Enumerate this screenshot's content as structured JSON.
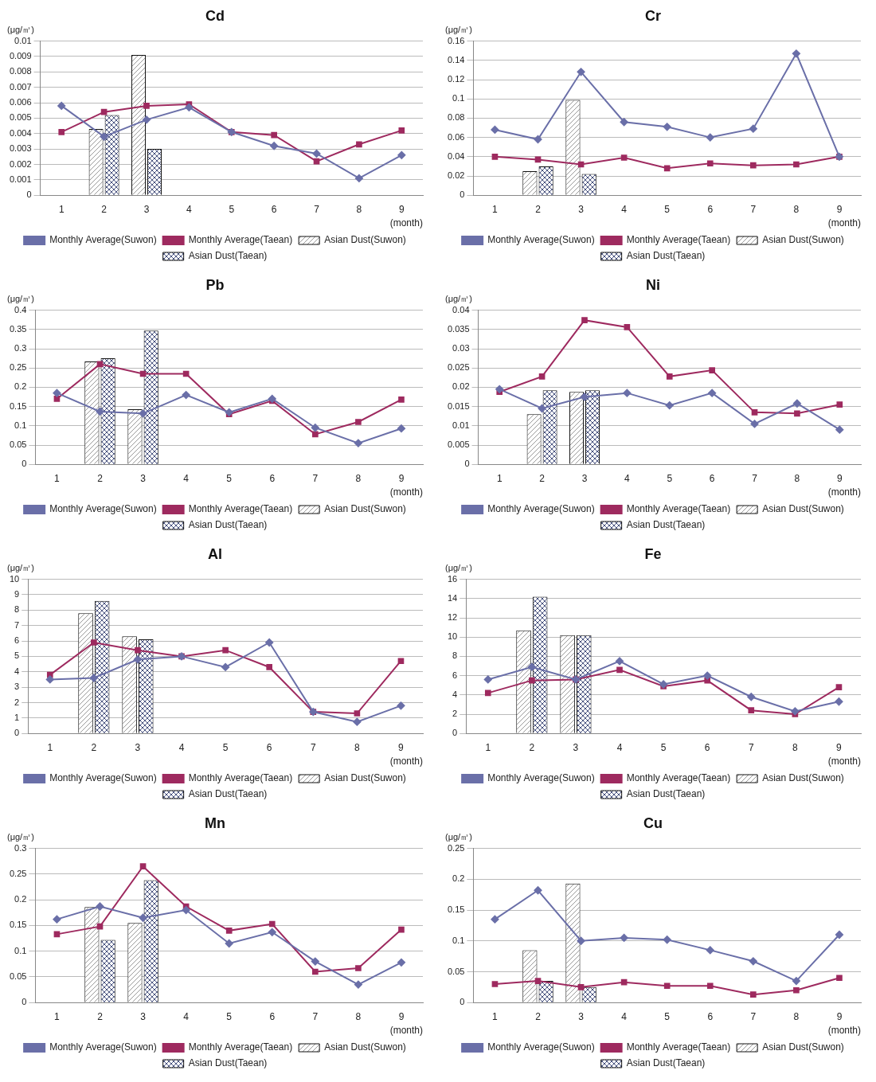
{
  "chart_data": [
    {
      "type": "bar",
      "title": "Cd",
      "y_label": "(μg/㎥)",
      "x_label": "(month)",
      "categories": [
        "1",
        "2",
        "3",
        "4",
        "5",
        "6",
        "7",
        "8",
        "9"
      ],
      "ylim": [
        0,
        0.01
      ],
      "yticks": [
        0,
        0.001,
        0.002,
        0.003,
        0.004,
        0.005,
        0.006,
        0.007,
        0.008,
        0.009,
        0.01
      ],
      "grid": true,
      "legend": "bottom",
      "series": [
        {
          "name": "Asian Dust(Suwon)",
          "type": "bar",
          "color": "#9a9a9a",
          "values": [
            null,
            0.0043,
            0.0091,
            null,
            null,
            null,
            null,
            null,
            null
          ]
        },
        {
          "name": "Asian Dust(Taean)",
          "type": "bar",
          "color": "#4a5480",
          "values": [
            null,
            0.0052,
            0.003,
            null,
            null,
            null,
            null,
            null,
            null
          ]
        },
        {
          "name": "Monthly Average(Suwon)",
          "type": "line",
          "color": "#6a6fa8",
          "marker": "diamond",
          "values": [
            0.0058,
            0.0038,
            0.0049,
            0.0057,
            0.0041,
            0.0032,
            0.0027,
            0.0011,
            0.0026
          ]
        },
        {
          "name": "Monthly Average(Taean)",
          "type": "line",
          "color": "#9e2a5f",
          "marker": "square",
          "values": [
            0.0041,
            0.0054,
            0.0058,
            0.0059,
            0.0041,
            0.0039,
            0.0022,
            0.0033,
            0.0042
          ]
        }
      ]
    },
    {
      "type": "bar",
      "title": "Cr",
      "y_label": "(μg/㎥)",
      "x_label": "(month)",
      "categories": [
        "1",
        "2",
        "3",
        "4",
        "5",
        "6",
        "7",
        "8",
        "9"
      ],
      "ylim": [
        0,
        0.16
      ],
      "yticks": [
        0,
        0.02,
        0.04,
        0.06,
        0.08,
        0.1,
        0.12,
        0.14,
        0.16
      ],
      "grid": true,
      "legend": "bottom",
      "series": [
        {
          "name": "Asian Dust(Suwon)",
          "type": "bar",
          "color": "#9a9a9a",
          "values": [
            null,
            0.025,
            0.099,
            null,
            null,
            null,
            null,
            null,
            null
          ]
        },
        {
          "name": "Asian Dust(Taean)",
          "type": "bar",
          "color": "#4a5480",
          "values": [
            null,
            0.03,
            0.022,
            null,
            null,
            null,
            null,
            null,
            null
          ]
        },
        {
          "name": "Monthly Average(Suwon)",
          "type": "line",
          "color": "#6a6fa8",
          "marker": "diamond",
          "values": [
            0.068,
            0.058,
            0.128,
            0.076,
            0.071,
            0.06,
            0.069,
            0.147,
            0.04
          ]
        },
        {
          "name": "Monthly Average(Taean)",
          "type": "line",
          "color": "#9e2a5f",
          "marker": "square",
          "values": [
            0.04,
            0.037,
            0.032,
            0.039,
            0.028,
            0.033,
            0.031,
            0.032,
            0.04
          ]
        }
      ]
    },
    {
      "type": "bar",
      "title": "Pb",
      "y_label": "(μg/㎥)",
      "x_label": "(month)",
      "categories": [
        "1",
        "2",
        "3",
        "4",
        "5",
        "6",
        "7",
        "8",
        "9"
      ],
      "ylim": [
        0,
        0.4
      ],
      "yticks": [
        0,
        0.05,
        0.1,
        0.15,
        0.2,
        0.25,
        0.3,
        0.35,
        0.4
      ],
      "grid": true,
      "legend": "bottom",
      "series": [
        {
          "name": "Asian Dust(Suwon)",
          "type": "bar",
          "color": "#9a9a9a",
          "values": [
            null,
            0.267,
            0.143,
            null,
            null,
            null,
            null,
            null,
            null
          ]
        },
        {
          "name": "Asian Dust(Taean)",
          "type": "bar",
          "color": "#4a5480",
          "values": [
            null,
            0.275,
            0.347,
            null,
            null,
            null,
            null,
            null,
            null
          ]
        },
        {
          "name": "Monthly Average(Suwon)",
          "type": "line",
          "color": "#6a6fa8",
          "marker": "diamond",
          "values": [
            0.185,
            0.137,
            0.132,
            0.18,
            0.135,
            0.17,
            0.095,
            0.055,
            0.093
          ]
        },
        {
          "name": "Monthly Average(Taean)",
          "type": "line",
          "color": "#9e2a5f",
          "marker": "square",
          "values": [
            0.17,
            0.26,
            0.235,
            0.235,
            0.13,
            0.165,
            0.078,
            0.11,
            0.168
          ]
        }
      ]
    },
    {
      "type": "bar",
      "title": "Ni",
      "y_label": "(μg/㎥)",
      "x_label": "(month)",
      "categories": [
        "1",
        "2",
        "3",
        "4",
        "5",
        "6",
        "7",
        "8",
        "9"
      ],
      "ylim": [
        0,
        0.04
      ],
      "yticks": [
        0,
        0.005,
        0.01,
        0.015,
        0.02,
        0.025,
        0.03,
        0.035,
        0.04
      ],
      "grid": true,
      "legend": "bottom",
      "series": [
        {
          "name": "Asian Dust(Suwon)",
          "type": "bar",
          "color": "#9a9a9a",
          "values": [
            null,
            0.013,
            0.0188,
            null,
            null,
            null,
            null,
            null,
            null
          ]
        },
        {
          "name": "Asian Dust(Taean)",
          "type": "bar",
          "color": "#4a5480",
          "values": [
            null,
            0.0192,
            0.0192,
            null,
            null,
            null,
            null,
            null,
            null
          ]
        },
        {
          "name": "Monthly Average(Suwon)",
          "type": "line",
          "color": "#6a6fa8",
          "marker": "diamond",
          "values": [
            0.0195,
            0.0145,
            0.0175,
            0.0185,
            0.0153,
            0.0185,
            0.0105,
            0.0158,
            0.009
          ]
        },
        {
          "name": "Monthly Average(Taean)",
          "type": "line",
          "color": "#9e2a5f",
          "marker": "square",
          "values": [
            0.0188,
            0.0228,
            0.0374,
            0.0356,
            0.0228,
            0.0244,
            0.0135,
            0.0132,
            0.0155
          ]
        }
      ]
    },
    {
      "type": "bar",
      "title": "Al",
      "y_label": "(μg/㎥)",
      "x_label": "(month)",
      "categories": [
        "1",
        "2",
        "3",
        "4",
        "5",
        "6",
        "7",
        "8",
        "9"
      ],
      "ylim": [
        0,
        10
      ],
      "yticks": [
        0,
        1,
        2,
        3,
        4,
        5,
        6,
        7,
        8,
        9,
        10
      ],
      "grid": true,
      "legend": "bottom",
      "series": [
        {
          "name": "Asian Dust(Suwon)",
          "type": "bar",
          "color": "#9a9a9a",
          "values": [
            null,
            7.8,
            6.3,
            null,
            null,
            null,
            null,
            null,
            null
          ]
        },
        {
          "name": "Asian Dust(Taean)",
          "type": "bar",
          "color": "#4a5480",
          "values": [
            null,
            8.6,
            6.1,
            null,
            null,
            null,
            null,
            null,
            null
          ]
        },
        {
          "name": "Monthly Average(Suwon)",
          "type": "line",
          "color": "#6a6fa8",
          "marker": "diamond",
          "values": [
            3.5,
            3.6,
            4.8,
            5.0,
            4.3,
            5.9,
            1.4,
            0.75,
            1.8
          ]
        },
        {
          "name": "Monthly Average(Taean)",
          "type": "line",
          "color": "#9e2a5f",
          "marker": "square",
          "values": [
            3.8,
            5.9,
            5.4,
            5.0,
            5.4,
            4.3,
            1.4,
            1.3,
            4.7
          ]
        }
      ]
    },
    {
      "type": "bar",
      "title": "Fe",
      "y_label": "(μg/㎥)",
      "x_label": "(month)",
      "categories": [
        "1",
        "2",
        "3",
        "4",
        "5",
        "6",
        "7",
        "8",
        "9"
      ],
      "ylim": [
        0,
        16
      ],
      "yticks": [
        0,
        2,
        4,
        6,
        8,
        10,
        12,
        14,
        16
      ],
      "grid": true,
      "legend": "bottom",
      "series": [
        {
          "name": "Asian Dust(Suwon)",
          "type": "bar",
          "color": "#9a9a9a",
          "values": [
            null,
            10.7,
            10.2,
            null,
            null,
            null,
            null,
            null,
            null
          ]
        },
        {
          "name": "Asian Dust(Taean)",
          "type": "bar",
          "color": "#4a5480",
          "values": [
            null,
            14.2,
            10.2,
            null,
            null,
            null,
            null,
            null,
            null
          ]
        },
        {
          "name": "Monthly Average(Suwon)",
          "type": "line",
          "color": "#6a6fa8",
          "marker": "diamond",
          "values": [
            5.6,
            6.9,
            5.6,
            7.5,
            5.1,
            6.0,
            3.8,
            2.3,
            3.3
          ]
        },
        {
          "name": "Monthly Average(Taean)",
          "type": "line",
          "color": "#9e2a5f",
          "marker": "square",
          "values": [
            4.2,
            5.5,
            5.6,
            6.6,
            4.9,
            5.5,
            2.4,
            2.0,
            4.8
          ]
        }
      ]
    },
    {
      "type": "bar",
      "title": "Mn",
      "y_label": "(μg/㎥)",
      "x_label": "(month)",
      "categories": [
        "1",
        "2",
        "3",
        "4",
        "5",
        "6",
        "7",
        "8",
        "9"
      ],
      "ylim": [
        0,
        0.3
      ],
      "yticks": [
        0,
        0.05,
        0.1,
        0.15,
        0.2,
        0.25,
        0.3
      ],
      "grid": true,
      "legend": "bottom",
      "series": [
        {
          "name": "Asian Dust(Suwon)",
          "type": "bar",
          "color": "#9a9a9a",
          "values": [
            null,
            0.186,
            0.155,
            null,
            null,
            null,
            null,
            null,
            null
          ]
        },
        {
          "name": "Asian Dust(Taean)",
          "type": "bar",
          "color": "#4a5480",
          "values": [
            null,
            0.122,
            0.238,
            null,
            null,
            null,
            null,
            null,
            null
          ]
        },
        {
          "name": "Monthly Average(Suwon)",
          "type": "line",
          "color": "#6a6fa8",
          "marker": "diamond",
          "values": [
            0.162,
            0.187,
            0.165,
            0.18,
            0.115,
            0.137,
            0.08,
            0.035,
            0.078
          ]
        },
        {
          "name": "Monthly Average(Taean)",
          "type": "line",
          "color": "#9e2a5f",
          "marker": "square",
          "values": [
            0.133,
            0.148,
            0.265,
            0.187,
            0.14,
            0.153,
            0.06,
            0.067,
            0.142
          ]
        }
      ]
    },
    {
      "type": "bar",
      "title": "Cu",
      "y_label": "(μg/㎥)",
      "x_label": "(month)",
      "categories": [
        "1",
        "2",
        "3",
        "4",
        "5",
        "6",
        "7",
        "8",
        "9"
      ],
      "ylim": [
        0,
        0.25
      ],
      "yticks": [
        0,
        0.05,
        0.1,
        0.15,
        0.2,
        0.25
      ],
      "grid": true,
      "legend": "bottom",
      "series": [
        {
          "name": "Asian Dust(Suwon)",
          "type": "bar",
          "color": "#9a9a9a",
          "values": [
            null,
            0.085,
            0.193,
            null,
            null,
            null,
            null,
            null,
            null
          ]
        },
        {
          "name": "Asian Dust(Taean)",
          "type": "bar",
          "color": "#4a5480",
          "values": [
            null,
            0.035,
            0.025,
            null,
            null,
            null,
            null,
            null,
            null
          ]
        },
        {
          "name": "Monthly Average(Suwon)",
          "type": "line",
          "color": "#6a6fa8",
          "marker": "diamond",
          "values": [
            0.135,
            0.182,
            0.1,
            0.105,
            0.102,
            0.085,
            0.067,
            0.035,
            0.11
          ]
        },
        {
          "name": "Monthly Average(Taean)",
          "type": "line",
          "color": "#9e2a5f",
          "marker": "square",
          "values": [
            0.03,
            0.035,
            0.025,
            0.033,
            0.027,
            0.027,
            0.013,
            0.02,
            0.04
          ]
        }
      ]
    }
  ]
}
